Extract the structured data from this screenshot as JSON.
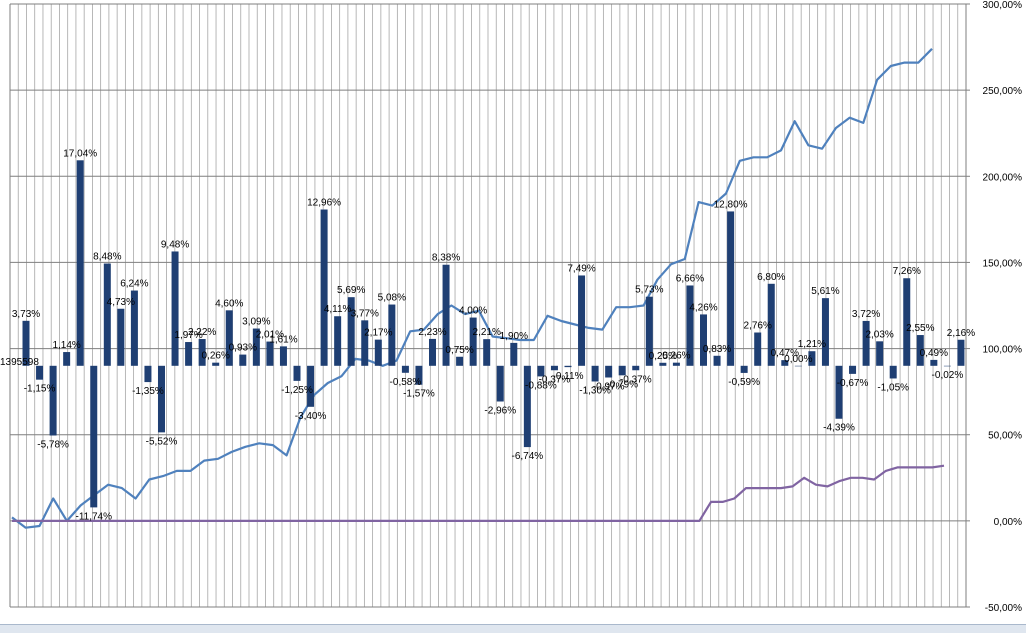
{
  "chart_data": {
    "type": "bar+line",
    "title": "",
    "xlabel": "",
    "ylabel": "",
    "right_axis": {
      "ylim": [
        -50,
        300
      ],
      "ticks": [
        "300,00%",
        "250,00%",
        "200,00%",
        "150,00%",
        "100,00%",
        "50,00%",
        "0,00%",
        "-50,00%"
      ]
    },
    "bar_axis": {
      "ylim": [
        -20,
        30
      ]
    },
    "grid": true,
    "colors": {
      "bars": "#1f3f73",
      "line_main": "#4f81bd",
      "line_secondary": "#8064a2",
      "grid": "#a6a6a6"
    },
    "series": [
      {
        "type": "bar",
        "values": [
          3.73,
          -1.15,
          -5.78,
          1.14,
          17.04,
          -11.74,
          8.48,
          4.73,
          6.24,
          -1.35,
          -5.52,
          9.48,
          1.97,
          2.22,
          0.26,
          4.6,
          0.93,
          3.09,
          2.01,
          1.61,
          -1.25,
          -3.4,
          12.96,
          4.11,
          5.69,
          3.77,
          2.17,
          5.08,
          -0.58,
          -1.57,
          2.23,
          8.38,
          0.75,
          4.0,
          2.21,
          -2.96,
          1.9,
          -6.74,
          -0.88,
          -0.37,
          -0.11,
          7.49,
          -1.3,
          -0.97,
          -0.79,
          -0.37,
          5.73,
          0.25,
          0.26,
          6.66,
          4.26,
          0.83,
          12.8,
          -0.59,
          2.76,
          6.8,
          0.47,
          0.0,
          1.21,
          5.61,
          -4.39,
          -0.67,
          3.72,
          2.03,
          -1.05,
          7.26,
          2.55,
          0.49,
          -0.02,
          2.16
        ],
        "labels": [
          "3,73%",
          "-1,15%",
          "-5,78%",
          "1,14%",
          "17,04%",
          "-11,74%",
          "8,48%",
          "4,73%",
          "6,24%",
          "-1,35%",
          "-5,52%",
          "9,48%",
          "1,97%",
          "2,22%",
          "0,26%",
          "4,60%",
          "0,93%",
          "3,09%",
          "2,01%",
          "1,61%",
          "-1,25%",
          "-3,40%",
          "12,96%",
          "4,11%",
          "5,69%",
          "3,77%",
          "2,17%",
          "5,08%",
          "-0,58%",
          "-1,57%",
          "2,23%",
          "8,38%",
          "0,75%",
          "4,00%",
          "2,21%",
          "-2,96%",
          "1,90%",
          "-6,74%",
          "-0,88%",
          "-0,37%",
          "-0,11%",
          "7,49%",
          "-1,30%",
          "-0,97%",
          "-0,79%",
          "-0,37%",
          "5,73%",
          "0,25%",
          "0,26%",
          "6,66%",
          "4,26%",
          "0,83%",
          "12,80%",
          "-0,59%",
          "2,76%",
          "6,80%",
          "0,47%",
          "0,00%",
          "1,21%",
          "5,61%",
          "-4,39%",
          "-0,67%",
          "3,72%",
          "2,03%",
          "-1,05%",
          "7,26%",
          "2,55%",
          "0,49%",
          "-0,02%",
          "2,16%"
        ]
      },
      {
        "type": "line",
        "values": [
          2,
          -4,
          -3,
          13,
          0,
          9,
          15,
          21,
          19,
          13,
          24,
          26,
          29,
          29,
          35,
          36,
          40,
          43,
          45,
          44,
          38,
          60,
          73,
          80,
          84,
          94,
          93,
          90,
          93,
          110,
          111,
          120,
          125,
          120,
          122,
          107,
          106,
          105,
          105,
          119,
          116,
          114,
          112,
          111,
          124,
          124,
          125,
          140,
          149,
          152,
          185,
          183,
          190,
          209,
          211,
          211,
          215,
          232,
          218,
          216,
          228,
          234,
          231,
          256,
          264,
          266,
          266,
          274
        ]
      },
      {
        "type": "line",
        "values": [
          0,
          0,
          0,
          0,
          0,
          0,
          0,
          0,
          0,
          0,
          0,
          0,
          0,
          0,
          0,
          0,
          0,
          0,
          0,
          0,
          0,
          0,
          0,
          0,
          0,
          0,
          0,
          0,
          0,
          0,
          0,
          0,
          0,
          0,
          0,
          0,
          0,
          0,
          0,
          0,
          0,
          0,
          0,
          0,
          0,
          0,
          0,
          0,
          0,
          0,
          0,
          0,
          0,
          0,
          0,
          0,
          0,
          0,
          0,
          0,
          11,
          11,
          13,
          19,
          19,
          19,
          19,
          20,
          25,
          21,
          20,
          23,
          25,
          25,
          24,
          29,
          31,
          31,
          31,
          31,
          32
        ]
      }
    ],
    "stray_label": "1395598"
  }
}
